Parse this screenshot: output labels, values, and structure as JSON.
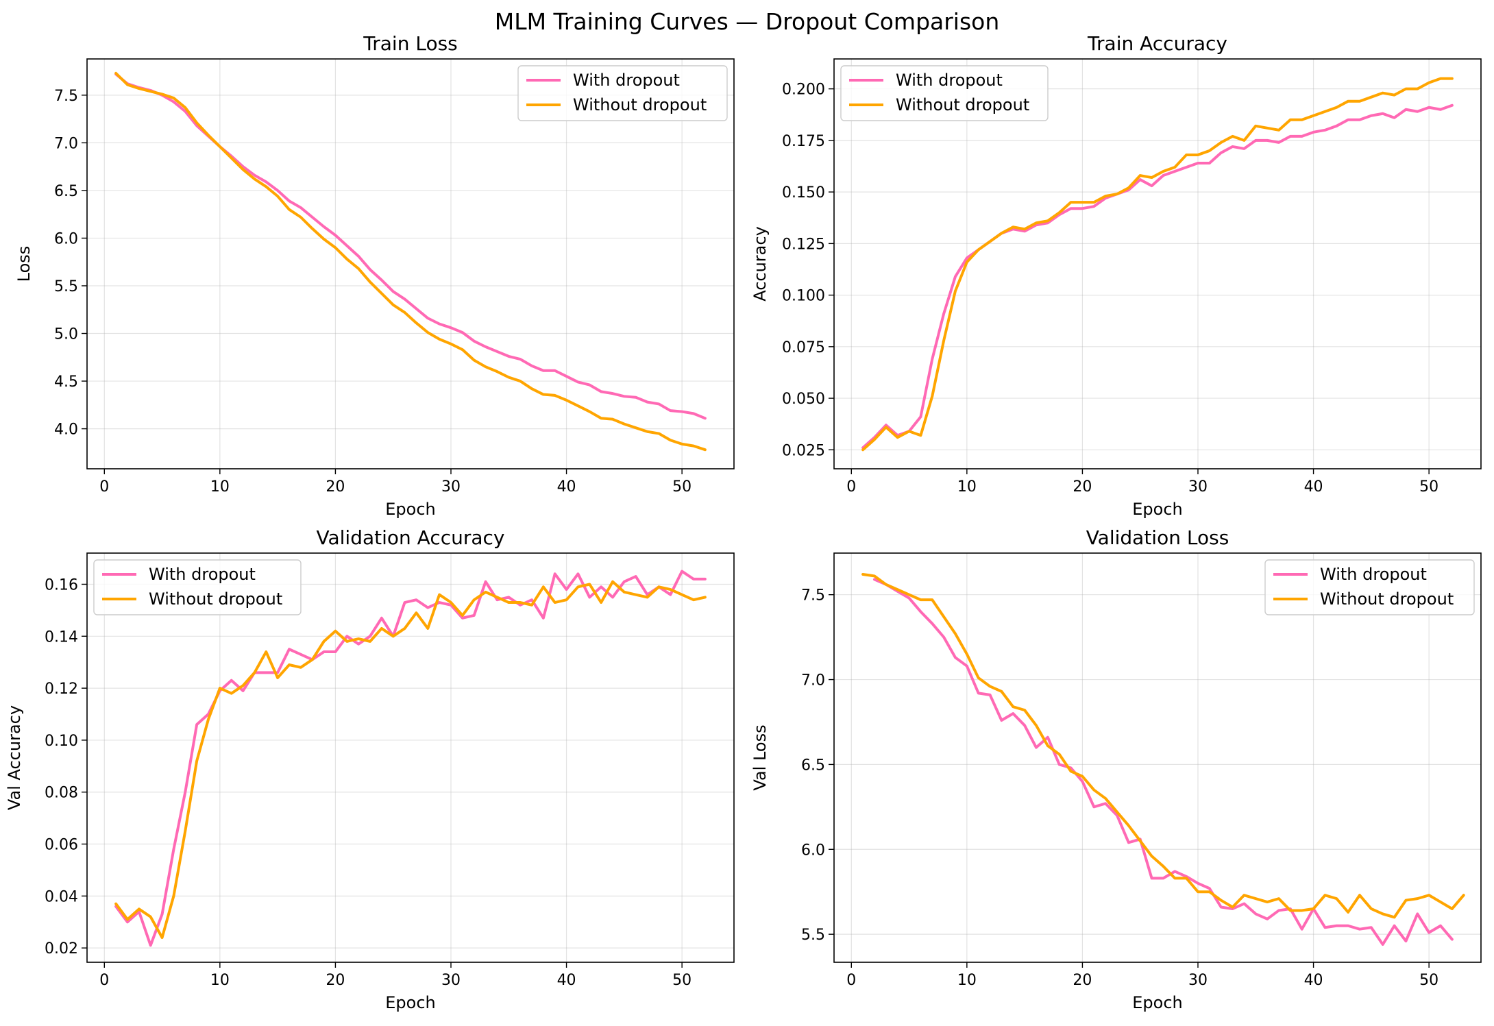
{
  "figure": {
    "title": "MLM Training Curves — Dropout Comparison"
  },
  "colors": {
    "with_dropout": "#ff69b4",
    "without_dropout": "#ffa500"
  },
  "chart_data": [
    {
      "id": "train-loss",
      "type": "line",
      "title": "Train Loss",
      "xlabel": "Epoch",
      "ylabel": "Loss",
      "xlim": [
        -1.5,
        54.5
      ],
      "ylim": [
        3.58,
        7.88
      ],
      "xticks": [
        0,
        10,
        20,
        30,
        40,
        50
      ],
      "yticks": [
        4.0,
        4.5,
        5.0,
        5.5,
        6.0,
        6.5,
        7.0,
        7.5
      ],
      "ytick_labels": [
        "4.0",
        "4.5",
        "5.0",
        "5.5",
        "6.0",
        "6.5",
        "7.0",
        "7.5"
      ],
      "legend": "upper right",
      "grid": true,
      "series": [
        {
          "name": "With dropout",
          "color": "#ff69b4",
          "x_start": 1,
          "values": [
            7.72,
            7.62,
            7.58,
            7.55,
            7.5,
            7.43,
            7.33,
            7.18,
            7.07,
            6.96,
            6.86,
            6.75,
            6.66,
            6.59,
            6.5,
            6.39,
            6.32,
            6.22,
            6.12,
            6.03,
            5.92,
            5.81,
            5.67,
            5.56,
            5.44,
            5.36,
            5.26,
            5.16,
            5.1,
            5.06,
            5.01,
            4.92,
            4.86,
            4.81,
            4.76,
            4.73,
            4.66,
            4.61,
            4.61,
            4.55,
            4.49,
            4.46,
            4.39,
            4.37,
            4.34,
            4.33,
            4.28,
            4.26,
            4.19,
            4.18,
            4.16,
            4.11
          ]
        },
        {
          "name": "Without dropout",
          "color": "#ffa500",
          "x_start": 1,
          "values": [
            7.73,
            7.61,
            7.57,
            7.54,
            7.51,
            7.47,
            7.37,
            7.21,
            7.08,
            6.96,
            6.84,
            6.72,
            6.62,
            6.54,
            6.44,
            6.3,
            6.22,
            6.1,
            5.99,
            5.9,
            5.78,
            5.68,
            5.54,
            5.42,
            5.3,
            5.22,
            5.11,
            5.01,
            4.94,
            4.89,
            4.83,
            4.72,
            4.65,
            4.6,
            4.54,
            4.5,
            4.42,
            4.36,
            4.35,
            4.3,
            4.24,
            4.18,
            4.11,
            4.1,
            4.05,
            4.01,
            3.97,
            3.95,
            3.88,
            3.84,
            3.82,
            3.78
          ]
        }
      ]
    },
    {
      "id": "train-accuracy",
      "type": "line",
      "title": "Train Accuracy",
      "xlabel": "Epoch",
      "ylabel": "Accuracy",
      "xlim": [
        -1.5,
        54.5
      ],
      "ylim": [
        0.0158,
        0.2145
      ],
      "xticks": [
        0,
        10,
        20,
        30,
        40,
        50
      ],
      "yticks": [
        0.025,
        0.05,
        0.075,
        0.1,
        0.125,
        0.15,
        0.175,
        0.2
      ],
      "ytick_labels": [
        "0.025",
        "0.050",
        "0.075",
        "0.100",
        "0.125",
        "0.150",
        "0.175",
        "0.200"
      ],
      "legend": "upper left",
      "grid": true,
      "series": [
        {
          "name": "With dropout",
          "color": "#ff69b4",
          "x_start": 1,
          "values": [
            0.026,
            0.031,
            0.037,
            0.032,
            0.034,
            0.041,
            0.069,
            0.091,
            0.109,
            0.118,
            0.122,
            0.126,
            0.13,
            0.132,
            0.131,
            0.134,
            0.135,
            0.139,
            0.142,
            0.142,
            0.143,
            0.147,
            0.149,
            0.151,
            0.156,
            0.153,
            0.158,
            0.16,
            0.162,
            0.164,
            0.164,
            0.169,
            0.172,
            0.171,
            0.175,
            0.175,
            0.174,
            0.177,
            0.177,
            0.179,
            0.18,
            0.182,
            0.185,
            0.185,
            0.187,
            0.188,
            0.186,
            0.19,
            0.189,
            0.191,
            0.19,
            0.192
          ]
        },
        {
          "name": "Without dropout",
          "color": "#ffa500",
          "x_start": 1,
          "values": [
            0.025,
            0.03,
            0.036,
            0.031,
            0.034,
            0.032,
            0.051,
            0.078,
            0.102,
            0.116,
            0.122,
            0.126,
            0.13,
            0.133,
            0.132,
            0.135,
            0.136,
            0.14,
            0.145,
            0.145,
            0.145,
            0.148,
            0.149,
            0.152,
            0.158,
            0.157,
            0.16,
            0.162,
            0.168,
            0.168,
            0.17,
            0.174,
            0.177,
            0.175,
            0.182,
            0.181,
            0.18,
            0.185,
            0.185,
            0.187,
            0.189,
            0.191,
            0.194,
            0.194,
            0.196,
            0.198,
            0.197,
            0.2,
            0.2,
            0.203,
            0.205,
            0.205
          ]
        }
      ]
    },
    {
      "id": "validation-accuracy",
      "type": "line",
      "title": "Validation Accuracy",
      "xlabel": "Epoch",
      "ylabel": "Val Accuracy",
      "xlim": [
        -1.5,
        54.5
      ],
      "ylim": [
        0.0145,
        0.172
      ],
      "xticks": [
        0,
        10,
        20,
        30,
        40,
        50
      ],
      "yticks": [
        0.02,
        0.04,
        0.06,
        0.08,
        0.1,
        0.12,
        0.14,
        0.16
      ],
      "ytick_labels": [
        "0.02",
        "0.04",
        "0.06",
        "0.08",
        "0.10",
        "0.12",
        "0.14",
        "0.16"
      ],
      "legend": "upper left",
      "grid": true,
      "series": [
        {
          "name": "With dropout",
          "color": "#ff69b4",
          "x_start": 1,
          "values": [
            0.036,
            0.03,
            0.034,
            0.021,
            0.033,
            0.058,
            0.08,
            0.106,
            0.11,
            0.119,
            0.123,
            0.119,
            0.126,
            0.126,
            0.126,
            0.135,
            0.133,
            0.131,
            0.134,
            0.134,
            0.14,
            0.137,
            0.14,
            0.147,
            0.14,
            0.153,
            0.154,
            0.151,
            0.153,
            0.152,
            0.147,
            0.148,
            0.161,
            0.154,
            0.155,
            0.152,
            0.154,
            0.147,
            0.164,
            0.158,
            0.164,
            0.155,
            0.159,
            0.155,
            0.161,
            0.163,
            0.156,
            0.159,
            0.156,
            0.165,
            0.162,
            0.162
          ]
        },
        {
          "name": "Without dropout",
          "color": "#ffa500",
          "x_start": 1,
          "values": [
            0.037,
            0.031,
            0.035,
            0.032,
            0.024,
            0.04,
            0.065,
            0.092,
            0.108,
            0.12,
            0.118,
            0.121,
            0.126,
            0.134,
            0.124,
            0.129,
            0.128,
            0.131,
            0.138,
            0.142,
            0.138,
            0.139,
            0.138,
            0.143,
            0.14,
            0.143,
            0.149,
            0.143,
            0.156,
            0.153,
            0.148,
            0.154,
            0.157,
            0.155,
            0.153,
            0.153,
            0.152,
            0.159,
            0.153,
            0.154,
            0.159,
            0.16,
            0.153,
            0.161,
            0.157,
            0.156,
            0.155,
            0.159,
            0.158,
            0.156,
            0.154,
            0.155
          ]
        }
      ]
    },
    {
      "id": "validation-loss",
      "type": "line",
      "title": "Validation Loss",
      "xlabel": "Epoch",
      "ylabel": "Val Loss",
      "xlim": [
        -1.5,
        54.5
      ],
      "ylim": [
        5.335,
        7.745
      ],
      "xticks": [
        0,
        10,
        20,
        30,
        40,
        50
      ],
      "yticks": [
        5.5,
        6.0,
        6.5,
        7.0,
        7.5
      ],
      "ytick_labels": [
        "5.5",
        "6.0",
        "6.5",
        "7.0",
        "7.5"
      ],
      "legend": "upper right",
      "grid": true,
      "series": [
        {
          "name": "With dropout",
          "color": "#ff69b4",
          "x_start": 2,
          "values": [
            7.59,
            7.56,
            7.52,
            7.48,
            7.4,
            7.33,
            7.25,
            7.13,
            7.08,
            6.92,
            6.91,
            6.76,
            6.8,
            6.73,
            6.6,
            6.66,
            6.5,
            6.48,
            6.4,
            6.25,
            6.27,
            6.2,
            6.04,
            6.06,
            5.83,
            5.83,
            5.87,
            5.84,
            5.8,
            5.77,
            5.66,
            5.65,
            5.68,
            5.62,
            5.59,
            5.64,
            5.65,
            5.53,
            5.65,
            5.54,
            5.55,
            5.55,
            5.53,
            5.54,
            5.44,
            5.55,
            5.46,
            5.62,
            5.51,
            5.55,
            5.47
          ]
        },
        {
          "name": "Without dropout",
          "color": "#ffa500",
          "x_start": 1,
          "values": [
            7.62,
            7.61,
            7.56,
            7.53,
            7.5,
            7.47,
            7.47,
            7.37,
            7.27,
            7.15,
            7.01,
            6.96,
            6.93,
            6.84,
            6.82,
            6.73,
            6.61,
            6.56,
            6.46,
            6.43,
            6.35,
            6.3,
            6.22,
            6.14,
            6.05,
            5.96,
            5.9,
            5.83,
            5.83,
            5.75,
            5.75,
            5.7,
            5.66,
            5.73,
            5.71,
            5.69,
            5.71,
            5.64,
            5.64,
            5.65,
            5.73,
            5.71,
            5.63,
            5.73,
            5.65,
            5.62,
            5.6,
            5.7,
            5.71,
            5.73,
            5.69,
            5.65,
            5.73
          ]
        }
      ]
    }
  ]
}
